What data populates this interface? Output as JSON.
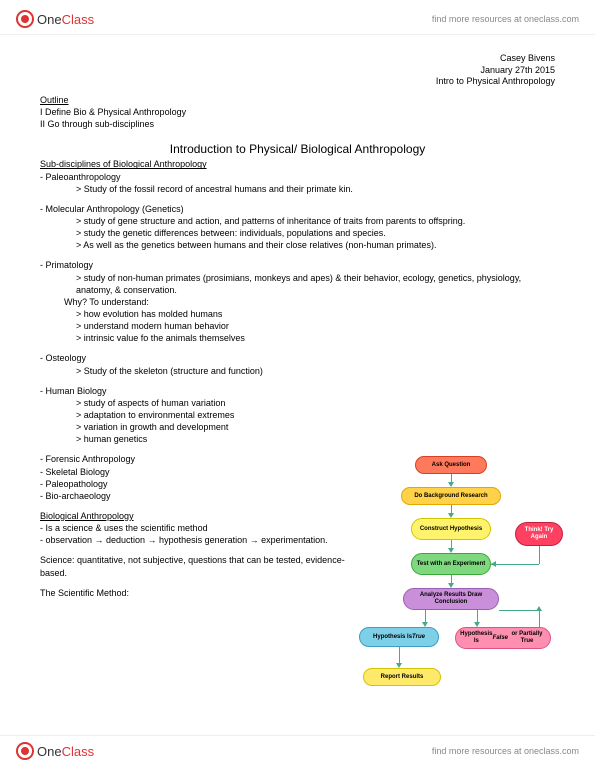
{
  "brand": {
    "one": "One",
    "class": "Class",
    "link": "find more resources at oneclass.com"
  },
  "meta": {
    "author": "Casey Bivens",
    "date": "January 27th 2015",
    "course": "Intro to Physical Anthropology"
  },
  "outline": {
    "h": "Outline",
    "l1": "I Define Bio & Physical Anthropology",
    "l2": "II Go through sub-disciplines"
  },
  "title": "Introduction to Physical/ Biological Anthropology",
  "subh": "Sub-disciplines of Biological Anthropology",
  "paleo": {
    "h": "- Paleoanthropology",
    "b1": "> Study of the fossil record of ancestral humans and their primate kin."
  },
  "mol": {
    "h": "- Molecular Anthropology (Genetics)",
    "b1": "> study of gene structure and action, and patterns of inheritance of traits from parents to offspring.",
    "b2": "> study the genetic differences between: individuals, populations and species.",
    "b3": "> As well as the genetics between humans and their close relatives (non-human primates)."
  },
  "prim": {
    "h": "- Primatology",
    "b1": "> study of non-human primates (prosimians, monkeys and apes) & their behavior, ecology, genetics, physiology, anatomy, & conservation.",
    "why": "Why? To understand:",
    "w1": "> how evolution has molded humans",
    "w2": "> understand modern human behavior",
    "w3": "> intrinsic value fo the animals themselves"
  },
  "ost": {
    "h": "- Osteology",
    "b1": "> Study of the skeleton (structure and function)"
  },
  "hb": {
    "h": "- Human Biology",
    "b1": "> study of aspects of human variation",
    "b2": "> adaptation to environmental extremes",
    "b3": "> variation in growth and development",
    "b4": "> human genetics"
  },
  "list": {
    "l1": "- Forensic Anthropology",
    "l2": "- Skeletal Biology",
    "l3": "- Paleopathology",
    "l4": "- Bio-archaeology"
  },
  "bio": {
    "h": "Biological Anthropology",
    "b1": "- Is a science & uses the scientific method",
    "b2": "- observation → deduction → hypothesis generation → experimentation."
  },
  "sci": "Science: quantitative, not subjective, questions that can be tested, evidence-based.",
  "sm": "The Scientific Method:",
  "flow": {
    "n1": {
      "t": "Ask Question",
      "bg": "#ff7a5c",
      "bd": "#d94020"
    },
    "n2": {
      "t": "Do Background Research",
      "bg": "#ffd24a",
      "bd": "#e0a800"
    },
    "n3": {
      "t": "Construct Hypothesis",
      "bg": "#fff36b",
      "bd": "#d4c400"
    },
    "n4": {
      "t": "Test with an Experiment",
      "bg": "#7ed97e",
      "bd": "#3aa83a"
    },
    "n5": {
      "t": "Analyze Results Draw Conclusion",
      "bg": "#c98fd9",
      "bd": "#9a5fb0"
    },
    "n6": {
      "t": "Hypothesis Is True",
      "bg": "#7ecfe8",
      "bd": "#3a9fc0",
      "it": "True"
    },
    "n7": {
      "t": "Hypothesis Is False or Partially True",
      "bg": "#ff8fb0",
      "bd": "#e05080",
      "it": "False"
    },
    "n8": {
      "t": "Report Results",
      "bg": "#ffe96b",
      "bd": "#d4c400"
    },
    "think": {
      "t": "Think! Try Again",
      "bg": "#ff4060",
      "bd": "#c02040"
    }
  }
}
